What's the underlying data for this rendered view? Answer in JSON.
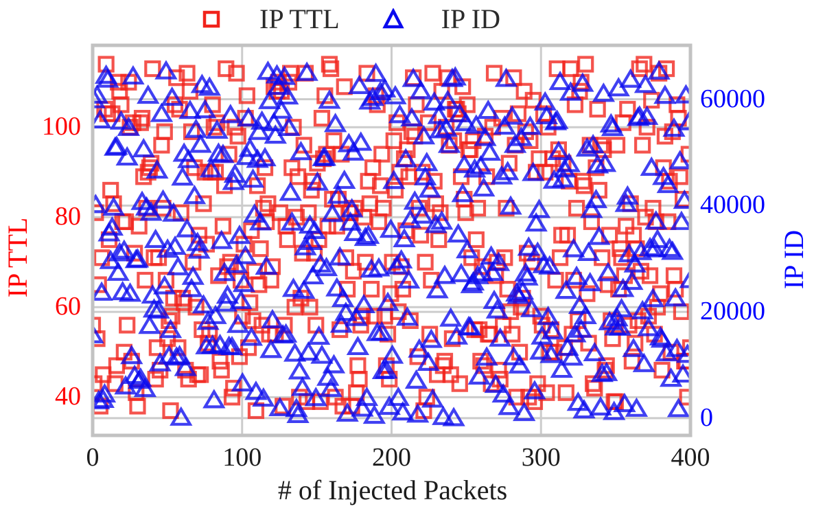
{
  "chart_data": {
    "type": "scatter",
    "title": "",
    "xlabel": "# of Injected Packets",
    "xlim": [
      0,
      400
    ],
    "x_ticks": [
      0,
      100,
      200,
      300,
      400
    ],
    "grid": true,
    "legend_position": "top",
    "left_axis": {
      "label": "IP TTL",
      "color": "#ff0000",
      "ticks": [
        40,
        60,
        80,
        100
      ],
      "ylim": [
        31.5,
        118.2
      ]
    },
    "right_axis": {
      "label": "IP ID",
      "color": "#0000ff",
      "ticks": [
        0,
        20000,
        40000,
        60000
      ],
      "ylim": [
        -3250,
        70150
      ]
    },
    "style": {
      "grid_color": "#cccccc",
      "spine_color": "#c2c2c2",
      "background": "#ffffff",
      "legend_text_color": "#2a2a2a",
      "tick_text_color": "#1c1c1c"
    },
    "series": [
      {
        "name": "IP TTL",
        "axis": "left",
        "marker": "square",
        "color": "#f1231b",
        "marker_opacity": 0.78,
        "n_points": 400,
        "x_description": "packet index, evenly spanning 0-400",
        "y_distribution": "uniform random integers",
        "y_range": [
          36,
          114
        ],
        "seed": 42,
        "approx_sample_points": [
          [
            3,
            104
          ],
          [
            9,
            57
          ],
          [
            22,
            95
          ],
          [
            60,
            113
          ],
          [
            101,
            71
          ],
          [
            140,
            105
          ],
          [
            178,
            113
          ],
          [
            205,
            78
          ],
          [
            228,
            37
          ],
          [
            262,
            110
          ],
          [
            301,
            112
          ],
          [
            342,
            62
          ],
          [
            371,
            48
          ],
          [
            397,
            36
          ]
        ]
      },
      {
        "name": "IP ID",
        "axis": "right",
        "marker": "triangle",
        "color": "#0a0aee",
        "marker_opacity": 0.78,
        "n_points": 400,
        "x_description": "packet index, evenly spanning 0-400",
        "y_distribution": "uniform random integers",
        "y_range": [
          0,
          65535
        ],
        "seed": 7,
        "approx_sample_points": [
          [
            6,
            57000
          ],
          [
            15,
            12000
          ],
          [
            48,
            30000
          ],
          [
            87,
            1500
          ],
          [
            120,
            58000
          ],
          [
            160,
            45000
          ],
          [
            199,
            52000
          ],
          [
            240,
            22000
          ],
          [
            280,
            61000
          ],
          [
            320,
            39000
          ],
          [
            355,
            8000
          ],
          [
            395,
            55000
          ]
        ]
      }
    ]
  }
}
